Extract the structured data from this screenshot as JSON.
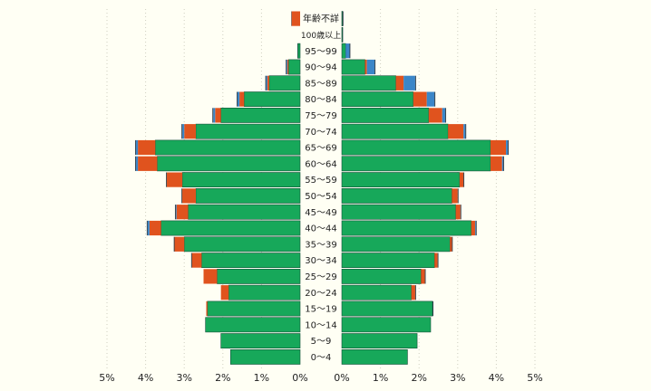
{
  "chart_data": {
    "type": "bar",
    "title": "",
    "xlabel": "",
    "ylabel": "",
    "xlim": [
      0,
      5
    ],
    "x_ticks": {
      "left": [
        "5%",
        "4%",
        "3%",
        "2%",
        "1%",
        "0%"
      ],
      "right": [
        "0%",
        "1%",
        "2%",
        "3%",
        "4%",
        "5%"
      ]
    },
    "grid": true,
    "colors": {
      "green": "#17a85a",
      "orange": "#e0531e",
      "blue": "#3b86c8",
      "dark": "#1f2d3a"
    },
    "categories": [
      "0〜4",
      "5〜9",
      "10〜14",
      "15〜19",
      "20〜24",
      "25〜29",
      "30〜34",
      "35〜39",
      "40〜44",
      "45〜49",
      "50〜54",
      "55〜59",
      "60〜64",
      "65〜69",
      "70〜74",
      "75〜79",
      "80〜84",
      "85〜89",
      "90〜94",
      "95〜99",
      "100歳以上",
      "年齢不詳"
    ],
    "left_side": [
      [
        1.8,
        0,
        0,
        0
      ],
      [
        2.05,
        0,
        0,
        0
      ],
      [
        2.45,
        0,
        0,
        0
      ],
      [
        2.4,
        0.03,
        0,
        0
      ],
      [
        1.85,
        0.2,
        0,
        0
      ],
      [
        2.15,
        0.35,
        0,
        0
      ],
      [
        2.55,
        0.25,
        0,
        0.02
      ],
      [
        3.0,
        0.25,
        0,
        0.02
      ],
      [
        3.6,
        0.3,
        0.05,
        0.02
      ],
      [
        2.9,
        0.3,
        0.02,
        0.02
      ],
      [
        2.7,
        0.35,
        0,
        0.02
      ],
      [
        3.05,
        0.4,
        0,
        0.02
      ],
      [
        3.7,
        0.5,
        0.05,
        0.02
      ],
      [
        3.75,
        0.45,
        0.05,
        0.02
      ],
      [
        2.7,
        0.3,
        0.05,
        0.02
      ],
      [
        2.05,
        0.15,
        0.05,
        0.02
      ],
      [
        1.45,
        0.12,
        0.05,
        0.02
      ],
      [
        0.8,
        0.05,
        0.03,
        0.02
      ],
      [
        0.3,
        0.03,
        0.02,
        0.02
      ],
      [
        0.06,
        0,
        0,
        0.01
      ],
      [
        0.0,
        0,
        0,
        0
      ],
      [
        0.0,
        0.22,
        0,
        0.01
      ]
    ],
    "right_side": [
      [
        1.7,
        0,
        0,
        0
      ],
      [
        1.95,
        0,
        0,
        0
      ],
      [
        2.3,
        0,
        0,
        0
      ],
      [
        2.35,
        0,
        0,
        0.02
      ],
      [
        1.8,
        0.1,
        0,
        0.02
      ],
      [
        2.05,
        0.1,
        0,
        0.02
      ],
      [
        2.4,
        0.08,
        0,
        0.02
      ],
      [
        2.8,
        0.05,
        0,
        0.02
      ],
      [
        3.35,
        0.1,
        0.02,
        0.02
      ],
      [
        2.95,
        0.12,
        0,
        0.02
      ],
      [
        2.85,
        0.15,
        0,
        0.02
      ],
      [
        3.05,
        0.1,
        0,
        0.02
      ],
      [
        3.85,
        0.3,
        0.03,
        0.02
      ],
      [
        3.85,
        0.4,
        0.05,
        0.02
      ],
      [
        2.75,
        0.4,
        0.05,
        0.02
      ],
      [
        2.25,
        0.35,
        0.08,
        0.02
      ],
      [
        1.85,
        0.35,
        0.2,
        0.02
      ],
      [
        1.4,
        0.2,
        0.3,
        0.02
      ],
      [
        0.6,
        0.05,
        0.2,
        0.02
      ],
      [
        0.1,
        0,
        0.1,
        0.02
      ],
      [
        0.02,
        0,
        0,
        0.01
      ],
      [
        0.02,
        0,
        0,
        0.02
      ]
    ]
  }
}
